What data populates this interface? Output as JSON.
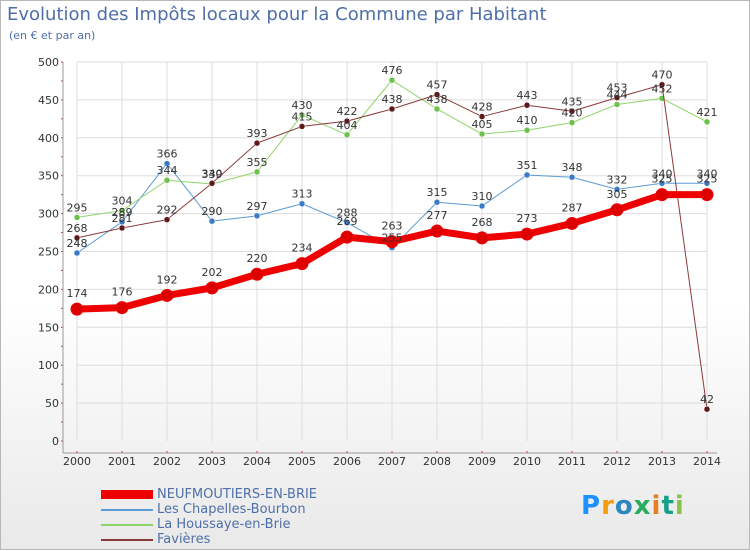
{
  "title": "Evolution des Impôts locaux pour la Commune par Habitant",
  "subtitle": "(en € et par an)",
  "logo": {
    "text": "Proxiti",
    "colors": [
      "#1e90ff",
      "#f39c12",
      "#2e86c1",
      "#27ae60",
      "#e67e22",
      "#16a085",
      "#8bc34a"
    ]
  },
  "chart_data": {
    "type": "line",
    "title": "Evolution des Impôts locaux pour la Commune par Habitant",
    "ylabel": "(en € et par an)",
    "xlabel": "",
    "x": [
      "2000",
      "2001",
      "2002",
      "2003",
      "2004",
      "2005",
      "2006",
      "2007",
      "2008",
      "2009",
      "2010",
      "2011",
      "2012",
      "2013",
      "2014"
    ],
    "ylim": [
      0,
      500
    ],
    "yticks": [
      0,
      50,
      100,
      150,
      200,
      250,
      300,
      350,
      400,
      450,
      500
    ],
    "grid": true,
    "legend_position": "bottom-left",
    "series": [
      {
        "name": "NEUFMOUTIERS-EN-BRIE",
        "color": "#ee0000",
        "marker": "#dd0000",
        "width": 7,
        "values": [
          174,
          176,
          192,
          202,
          220,
          234,
          269,
          263,
          277,
          268,
          273,
          287,
          305,
          325,
          325
        ],
        "labels": [
          "174",
          "176",
          "192",
          "202",
          "220",
          "234",
          "269",
          "263",
          "277",
          "268",
          "273",
          "287",
          "305",
          "325",
          "325"
        ]
      },
      {
        "name": "Les Chapelles-Bourbon",
        "color": "#5b9bd5",
        "marker": "#3a7bc8",
        "width": 1,
        "values": [
          248,
          289,
          366,
          290,
          297,
          313,
          288,
          255,
          315,
          310,
          351,
          348,
          332,
          340,
          340
        ],
        "labels": [
          "248",
          "289",
          "366",
          "290",
          "297",
          "313",
          "288",
          "255",
          "315",
          "310",
          "351",
          "348",
          "332",
          "340",
          "340"
        ]
      },
      {
        "name": "La Houssaye-en-Brie",
        "color": "#8ed46a",
        "marker": "#6cc24a",
        "width": 1,
        "values": [
          295,
          304,
          344,
          339,
          355,
          430,
          404,
          476,
          438,
          405,
          410,
          420,
          444,
          452,
          421
        ],
        "labels": [
          "295",
          "304",
          "344",
          "339",
          "355",
          "430",
          "404",
          "476",
          "438",
          "405",
          "410",
          "420",
          "444",
          "452",
          "421"
        ]
      },
      {
        "name": "Favières",
        "color": "#8b3a3a",
        "marker": "#5e1a1a",
        "width": 1,
        "values": [
          268,
          281,
          292,
          340,
          393,
          415,
          422,
          438,
          457,
          428,
          443,
          435,
          453,
          470,
          42
        ],
        "labels": [
          "268",
          "281",
          "292",
          "340",
          "393",
          "415",
          "422",
          "438",
          "457",
          "428",
          "443",
          "435",
          "453",
          "470",
          "42"
        ]
      }
    ]
  }
}
